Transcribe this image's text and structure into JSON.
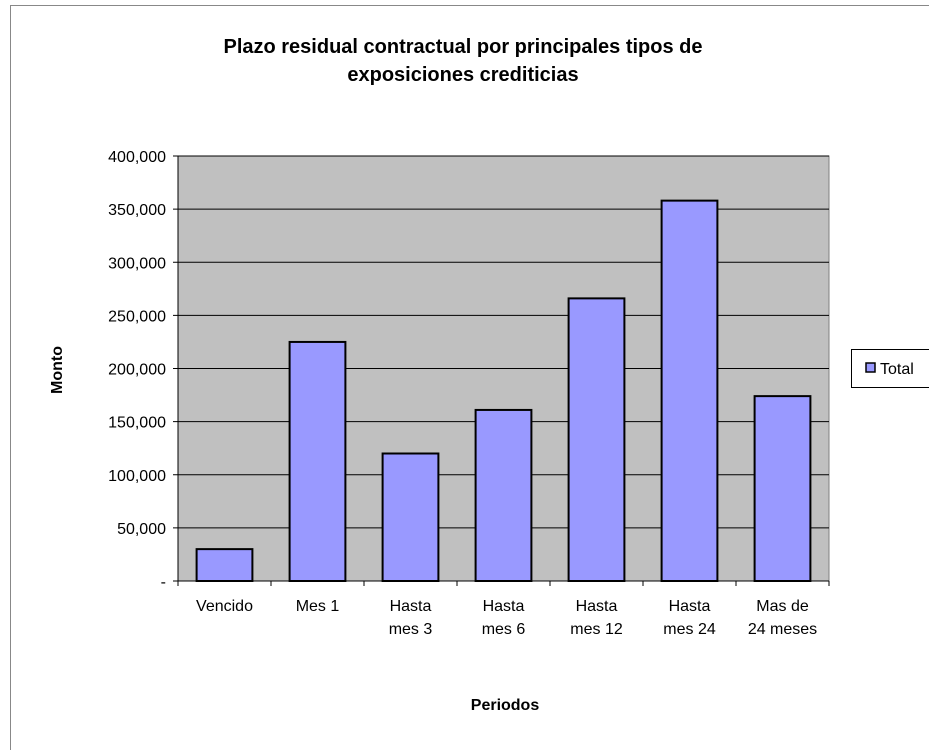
{
  "chart_data": {
    "type": "bar",
    "title": "Plazo residual contractual por principales  tipos de\nexposiciones crediticias",
    "x_label": "Periodos",
    "y_label": "Monto",
    "categories": [
      "Vencido",
      "Mes 1",
      "Hasta\nmes 3",
      "Hasta\nmes 6",
      "Hasta\nmes 12",
      "Hasta\nmes 24",
      "Mas de\n24 meses"
    ],
    "series": [
      {
        "name": "Total",
        "color": "#9999ff",
        "values": [
          30000,
          225000,
          120000,
          161000,
          266000,
          358000,
          174000
        ]
      }
    ],
    "ylim": [
      0,
      400000
    ],
    "yticks": [
      {
        "value": 0,
        "label": "-"
      },
      {
        "value": 50000,
        "label": "50,000"
      },
      {
        "value": 100000,
        "label": "100,000"
      },
      {
        "value": 150000,
        "label": "150,000"
      },
      {
        "value": 200000,
        "label": "200,000"
      },
      {
        "value": 250000,
        "label": "250,000"
      },
      {
        "value": 300000,
        "label": "300,000"
      },
      {
        "value": 350000,
        "label": "350,000"
      },
      {
        "value": 400000,
        "label": "400,000"
      }
    ],
    "grid": true,
    "legend": "right"
  }
}
